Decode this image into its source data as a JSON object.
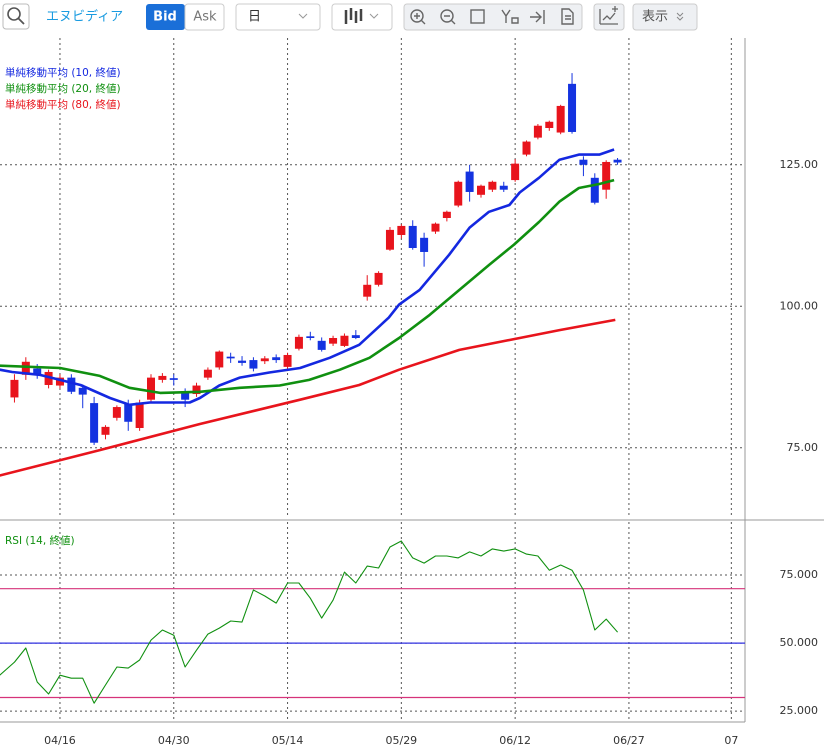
{
  "toolbar": {
    "symbol": "エヌビディア",
    "bid": "Bid",
    "ask": "Ask",
    "period": "日",
    "display": "表示"
  },
  "chart_data": [
    {
      "type": "candlestick",
      "xlim": [
        -5.27,
        60.2
      ],
      "xticks": [
        {
          "value": 0,
          "label": "04/16"
        },
        {
          "value": 10,
          "label": "04/30"
        },
        {
          "value": 20,
          "label": "05/14"
        },
        {
          "value": 30,
          "label": "05/29"
        },
        {
          "value": 40,
          "label": "06/12"
        },
        {
          "value": 50,
          "label": "06/27"
        },
        {
          "value": 59,
          "label": "07"
        }
      ],
      "ylim": [
        62.6,
        147.4
      ],
      "yticks": [
        {
          "value": 75,
          "label": "75.00"
        },
        {
          "value": 100,
          "label": "100.00"
        },
        {
          "value": 125,
          "label": "125.00"
        }
      ],
      "grid": true,
      "up_color": "#e8141c",
      "down_color": "#1433e0",
      "candles": {
        "x": [
          -4,
          -3,
          -2,
          -1,
          0,
          1,
          2,
          3,
          4,
          5,
          6,
          7,
          8,
          9,
          10,
          11,
          12,
          13,
          14,
          15,
          16,
          17,
          18,
          19,
          20,
          21,
          22,
          23,
          24,
          25,
          26,
          27,
          28,
          29,
          30,
          31,
          32,
          33,
          34,
          35,
          36,
          37,
          38,
          39,
          40,
          41,
          42,
          43,
          44,
          45,
          46,
          47,
          48,
          49
        ],
        "open": [
          83.9,
          87.9,
          89.0,
          86.1,
          86.0,
          87.4,
          85.6,
          82.9,
          77.3,
          80.3,
          82.8,
          78.5,
          83.5,
          87.0,
          87.3,
          85.0,
          84.5,
          87.4,
          89.2,
          91.1,
          90.4,
          90.5,
          90.3,
          91.0,
          89.3,
          92.5,
          94.7,
          93.9,
          93.4,
          93.0,
          94.9,
          101.7,
          103.8,
          110.0,
          112.6,
          114.2,
          112.1,
          113.2,
          115.6,
          117.8,
          123.8,
          119.7,
          120.6,
          121.3,
          122.3,
          126.8,
          129.8,
          131.5,
          130.7,
          139.3,
          125.9,
          122.7,
          120.6,
          125.9
        ],
        "high": [
          88.0,
          91.0,
          89.8,
          88.8,
          88.0,
          88.0,
          86.2,
          84.0,
          79.0,
          82.5,
          83.5,
          83.5,
          88.0,
          88.2,
          88.0,
          85.5,
          86.5,
          89.2,
          92.2,
          91.8,
          91.2,
          91.0,
          91.2,
          91.5,
          91.8,
          95.0,
          95.5,
          94.5,
          94.8,
          95.2,
          95.8,
          105.5,
          106.2,
          114.0,
          114.5,
          115.2,
          113.0,
          114.8,
          116.9,
          122.2,
          125.0,
          121.5,
          122.2,
          122.0,
          126.0,
          129.3,
          132.2,
          132.8,
          135.6,
          141.2,
          126.5,
          123.5,
          125.8,
          126.2
        ],
        "low": [
          83.0,
          87.0,
          87.2,
          85.5,
          85.5,
          84.5,
          82.0,
          75.5,
          76.5,
          79.8,
          78.0,
          78.0,
          83.0,
          86.5,
          86.0,
          82.2,
          84.0,
          87.0,
          88.8,
          90.0,
          89.5,
          88.5,
          89.8,
          90.0,
          89.0,
          92.2,
          94.0,
          92.0,
          93.0,
          92.8,
          94.2,
          101.0,
          103.5,
          109.8,
          112.0,
          110.0,
          107.0,
          112.8,
          115.0,
          117.5,
          118.5,
          119.2,
          120.2,
          120.2,
          122.0,
          126.5,
          129.5,
          131.0,
          130.4,
          130.5,
          123.0,
          118.0,
          119.0,
          125.0
        ],
        "close": [
          87.0,
          90.2,
          87.9,
          88.4,
          87.4,
          84.9,
          84.4,
          75.9,
          78.7,
          82.2,
          79.6,
          83.0,
          87.4,
          87.7,
          87.0,
          83.5,
          86.0,
          88.8,
          92.0,
          90.8,
          90.0,
          89.0,
          90.8,
          90.5,
          91.4,
          94.6,
          94.4,
          92.3,
          94.4,
          94.8,
          94.4,
          103.8,
          105.9,
          113.5,
          114.2,
          110.3,
          109.6,
          114.6,
          116.7,
          122.0,
          120.2,
          121.3,
          122.0,
          120.6,
          125.2,
          129.1,
          131.9,
          132.6,
          135.4,
          130.8,
          125.0,
          118.3,
          125.5,
          125.4
        ]
      },
      "series": [
        {
          "name": "単純移動平均 (10, 終値)",
          "color": "#1428e0",
          "x": [
            -5.3,
            -4.2,
            -1.8,
            1.8,
            4.4,
            6.1,
            7.9,
            11.4,
            12.3,
            14.0,
            15.8,
            18.4,
            21.1,
            23.7,
            26.3,
            28.9,
            29.8,
            31.6,
            34.2,
            36.0,
            37.7,
            39.5,
            40.4,
            42.1,
            43.9,
            45.6,
            47.4,
            48.7
          ],
          "values": [
            88.8,
            88.4,
            87.9,
            86.1,
            83.8,
            82.6,
            83.0,
            83.0,
            83.8,
            86.0,
            87.4,
            88.3,
            89.1,
            90.9,
            93.2,
            98.0,
            100.3,
            102.9,
            109.1,
            113.9,
            116.7,
            117.9,
            120.1,
            122.7,
            125.9,
            126.8,
            126.8,
            127.7
          ]
        },
        {
          "name": "単純移動平均 (20, 終値)",
          "color": "#109010",
          "x": [
            -5.3,
            0,
            3.5,
            6.1,
            8.8,
            12.3,
            15.8,
            19.3,
            21.9,
            24.6,
            27.2,
            29.8,
            32.5,
            35.1,
            37.7,
            39.9,
            42.1,
            43.9,
            45.6,
            47.4,
            48.7
          ],
          "values": [
            89.5,
            89.1,
            87.7,
            85.6,
            84.7,
            84.9,
            85.6,
            86.0,
            87.0,
            88.8,
            90.9,
            94.4,
            98.5,
            102.9,
            107.3,
            110.9,
            114.9,
            118.5,
            120.9,
            121.6,
            122.3
          ]
        },
        {
          "name": "単純移動平均 (80, 終値)",
          "color": "#e8141c",
          "x": [
            -5.3,
            3.5,
            12.3,
            21.1,
            26.3,
            29.8,
            35.1,
            40.4,
            43.9,
            48.8
          ],
          "values": [
            70.1,
            74.6,
            79.2,
            83.5,
            86.1,
            88.8,
            92.3,
            94.4,
            95.8,
            97.6
          ]
        }
      ]
    },
    {
      "type": "line",
      "xlim": [
        -5.27,
        60.2
      ],
      "xticks": [
        {
          "value": 0,
          "label": "04/16"
        },
        {
          "value": 10,
          "label": "04/30"
        },
        {
          "value": 20,
          "label": "05/14"
        },
        {
          "value": 30,
          "label": "05/29"
        },
        {
          "value": 40,
          "label": "06/12"
        },
        {
          "value": 50,
          "label": "06/27"
        },
        {
          "value": 59,
          "label": "07"
        }
      ],
      "ylim": [
        21,
        94.5
      ],
      "yticks": [
        {
          "value": 25,
          "label": "25.000"
        },
        {
          "value": 50,
          "label": "50.000"
        },
        {
          "value": 75,
          "label": "75.000"
        }
      ],
      "grid": true,
      "hlines": [
        {
          "value": 70,
          "color": "#d6337a"
        },
        {
          "value": 50,
          "color": "#3030e0"
        },
        {
          "value": 30,
          "color": "#d6337a"
        }
      ],
      "series": [
        {
          "name": "RSI (14, 終値)",
          "color": "#109010",
          "x": [
            -5.3,
            -4,
            -3,
            -2,
            -1,
            0,
            1,
            2,
            3,
            4,
            5,
            6,
            7,
            8,
            9,
            10,
            11,
            12,
            13,
            14,
            15,
            16,
            17,
            18,
            19,
            20,
            21,
            22,
            23,
            24,
            25,
            26,
            27,
            28,
            29,
            30,
            31,
            32,
            33,
            34,
            35,
            36,
            37,
            38,
            39,
            40,
            41,
            42,
            43,
            44,
            45,
            46,
            47,
            48,
            49
          ],
          "values": [
            38.2,
            43.0,
            48.2,
            35.7,
            31.3,
            38.2,
            37.1,
            37.1,
            27.9,
            34.6,
            41.2,
            40.8,
            43.8,
            51.1,
            54.8,
            52.9,
            41.2,
            47.4,
            53.3,
            55.5,
            58.1,
            57.7,
            69.5,
            67.3,
            64.7,
            72.1,
            72.1,
            66.5,
            59.2,
            65.8,
            76.1,
            72.1,
            78.3,
            77.6,
            85.3,
            87.5,
            81.3,
            79.4,
            82.0,
            82.0,
            81.3,
            83.5,
            82.0,
            84.6,
            83.8,
            84.6,
            82.7,
            82.0,
            76.8,
            78.7,
            76.8,
            69.5,
            54.8,
            58.8,
            54.0
          ]
        }
      ]
    }
  ]
}
